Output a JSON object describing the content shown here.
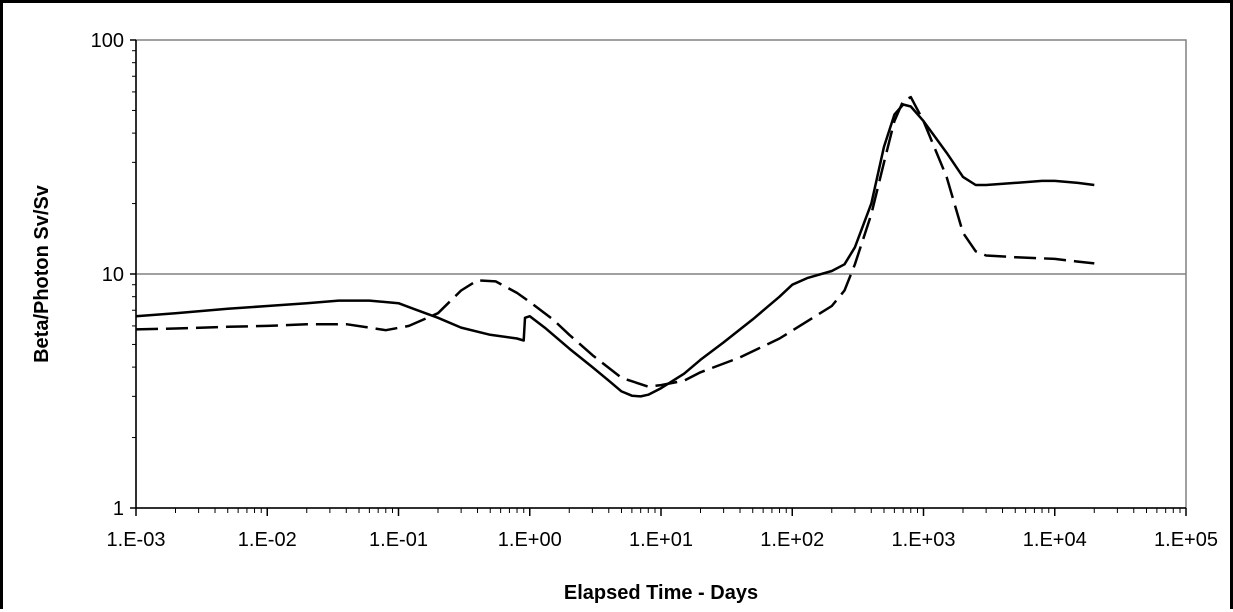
{
  "chart_data": {
    "type": "line",
    "title": "",
    "xlabel": "Elapsed Time - Days",
    "ylabel": "Beta/Photon Sv/Sv",
    "x_scale": "log",
    "y_scale": "log",
    "xlim": [
      0.001,
      100000
    ],
    "ylim": [
      1,
      100
    ],
    "x_ticks": [
      0.001,
      0.01,
      0.1,
      1,
      10,
      100,
      1000,
      10000,
      100000
    ],
    "x_tick_labels": [
      "1.E-03",
      "1.E-02",
      "1.E-01",
      "1.E+00",
      "1.E+01",
      "1.E+02",
      "1.E+03",
      "1.E+04",
      "1.E+05"
    ],
    "y_ticks": [
      1,
      10,
      100
    ],
    "y_tick_labels": [
      "1",
      "10",
      "100"
    ],
    "grid": "horizontal major gridlines",
    "legend": "none",
    "series": [
      {
        "style": "solid",
        "color": "#000000",
        "points": [
          [
            0.001,
            6.6
          ],
          [
            0.002,
            6.8
          ],
          [
            0.005,
            7.1
          ],
          [
            0.01,
            7.3
          ],
          [
            0.02,
            7.5
          ],
          [
            0.035,
            7.7
          ],
          [
            0.06,
            7.7
          ],
          [
            0.1,
            7.5
          ],
          [
            0.13,
            7.1
          ],
          [
            0.2,
            6.5
          ],
          [
            0.3,
            5.9
          ],
          [
            0.5,
            5.5
          ],
          [
            0.8,
            5.3
          ],
          [
            0.9,
            5.2
          ],
          [
            0.92,
            6.5
          ],
          [
            1.0,
            6.6
          ],
          [
            1.3,
            5.9
          ],
          [
            2,
            4.8
          ],
          [
            3,
            4.0
          ],
          [
            4,
            3.5
          ],
          [
            5,
            3.15
          ],
          [
            6,
            3.02
          ],
          [
            7,
            3.0
          ],
          [
            8,
            3.05
          ],
          [
            10,
            3.25
          ],
          [
            15,
            3.75
          ],
          [
            20,
            4.3
          ],
          [
            30,
            5.1
          ],
          [
            50,
            6.4
          ],
          [
            80,
            8.0
          ],
          [
            100,
            9.0
          ],
          [
            130,
            9.6
          ],
          [
            200,
            10.3
          ],
          [
            250,
            11.0
          ],
          [
            300,
            13.0
          ],
          [
            400,
            20.0
          ],
          [
            500,
            35.0
          ],
          [
            600,
            48.0
          ],
          [
            700,
            53.0
          ],
          [
            800,
            52.0
          ],
          [
            1000,
            45.0
          ],
          [
            1500,
            33.0
          ],
          [
            2000,
            26.0
          ],
          [
            2500,
            24.0
          ],
          [
            3000,
            24.0
          ],
          [
            5000,
            24.5
          ],
          [
            8000,
            25.0
          ],
          [
            10000,
            25.0
          ],
          [
            15000,
            24.5
          ],
          [
            20000,
            24.0
          ]
        ]
      },
      {
        "style": "dashed",
        "color": "#000000",
        "points": [
          [
            0.001,
            5.8
          ],
          [
            0.002,
            5.85
          ],
          [
            0.005,
            5.95
          ],
          [
            0.01,
            6.0
          ],
          [
            0.02,
            6.1
          ],
          [
            0.04,
            6.1
          ],
          [
            0.06,
            5.9
          ],
          [
            0.08,
            5.75
          ],
          [
            0.12,
            6.0
          ],
          [
            0.2,
            6.8
          ],
          [
            0.3,
            8.5
          ],
          [
            0.4,
            9.4
          ],
          [
            0.55,
            9.3
          ],
          [
            0.8,
            8.3
          ],
          [
            1.0,
            7.6
          ],
          [
            1.5,
            6.4
          ],
          [
            2,
            5.5
          ],
          [
            3,
            4.5
          ],
          [
            5,
            3.6
          ],
          [
            8,
            3.3
          ],
          [
            10,
            3.35
          ],
          [
            15,
            3.5
          ],
          [
            20,
            3.8
          ],
          [
            40,
            4.4
          ],
          [
            80,
            5.3
          ],
          [
            150,
            6.6
          ],
          [
            200,
            7.3
          ],
          [
            250,
            8.5
          ],
          [
            300,
            11.0
          ],
          [
            400,
            18.0
          ],
          [
            500,
            30.0
          ],
          [
            600,
            45.0
          ],
          [
            700,
            55.0
          ],
          [
            800,
            57.0
          ],
          [
            1000,
            45.0
          ],
          [
            1500,
            26.0
          ],
          [
            2000,
            15.0
          ],
          [
            2500,
            12.5
          ],
          [
            3000,
            12.0
          ],
          [
            5000,
            11.8
          ],
          [
            10000,
            11.6
          ],
          [
            15000,
            11.3
          ],
          [
            20000,
            11.1
          ]
        ]
      }
    ]
  }
}
